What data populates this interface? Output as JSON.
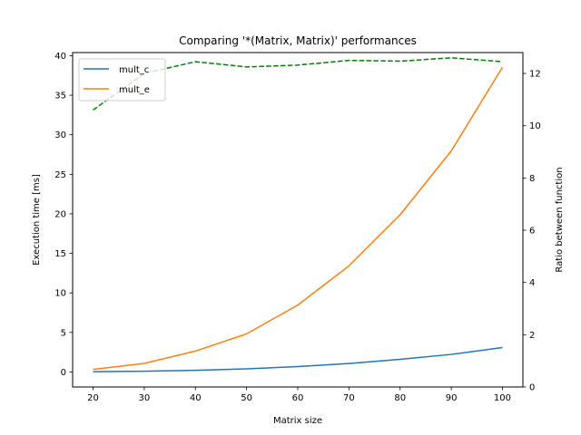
{
  "chart_data": {
    "type": "line",
    "title": "Comparing '*(Matrix, Matrix)' performances",
    "xlabel": "Matrix size",
    "ylabel": "Execution time [ms]",
    "y2label": "Ratio between function",
    "x": [
      20,
      30,
      40,
      50,
      60,
      70,
      80,
      90,
      100
    ],
    "xlim": [
      16,
      104
    ],
    "ylim": [
      -1.9,
      40.4
    ],
    "y2lim": [
      0,
      12.8
    ],
    "xticks": [
      "20",
      "30",
      "40",
      "50",
      "60",
      "70",
      "80",
      "90",
      "100"
    ],
    "yticks": [
      "0",
      "5",
      "10",
      "15",
      "20",
      "25",
      "30",
      "35",
      "40"
    ],
    "y2ticks": [
      "0",
      "2",
      "4",
      "6",
      "8",
      "10",
      "12"
    ],
    "grid": false,
    "legend_position": "upper-left",
    "series": [
      {
        "name": "mult_c",
        "axis": "left",
        "color": "#1f77b4",
        "style": "solid",
        "values": [
          0.03,
          0.09,
          0.21,
          0.39,
          0.68,
          1.07,
          1.59,
          2.22,
          3.09
        ]
      },
      {
        "name": "mult_e",
        "axis": "left",
        "color": "#ff7f0e",
        "style": "solid",
        "values": [
          0.32,
          1.08,
          2.64,
          4.82,
          8.46,
          13.42,
          19.88,
          27.96,
          38.54
        ]
      },
      {
        "axis": "right",
        "color": "#008000",
        "style": "dashed",
        "values": [
          10.6,
          12.0,
          12.45,
          12.25,
          12.32,
          12.5,
          12.47,
          12.6,
          12.45
        ]
      }
    ]
  }
}
